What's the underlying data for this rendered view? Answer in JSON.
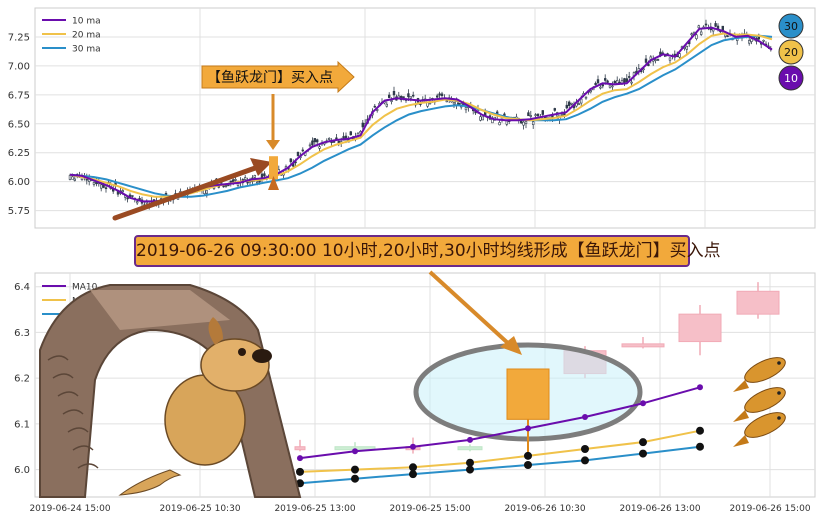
{
  "chart_data": [
    {
      "type": "candlestick",
      "series": [
        {
          "name": "10 ma",
          "color": "#6a0dad"
        },
        {
          "name": "20 ma",
          "color": "#f0c24a"
        },
        {
          "name": "30 ma",
          "color": "#2a8fc9"
        }
      ],
      "y_ticks": [
        "5.75",
        "6.00",
        "6.25",
        "6.50",
        "6.75",
        "7.00",
        "7.25"
      ],
      "ylim": [
        5.6,
        7.5
      ],
      "ma10": [
        6.06,
        6.05,
        6.01,
        5.97,
        5.92,
        5.86,
        5.83,
        5.83,
        5.84,
        5.88,
        5.92,
        5.95,
        5.97,
        5.98,
        5.99,
        6.02,
        6.03,
        6.06,
        6.12,
        6.22,
        6.3,
        6.34,
        6.36,
        6.37,
        6.4,
        6.6,
        6.7,
        6.72,
        6.71,
        6.7,
        6.71,
        6.72,
        6.71,
        6.65,
        6.58,
        6.54,
        6.53,
        6.53,
        6.54,
        6.56,
        6.58,
        6.6,
        6.7,
        6.8,
        6.85,
        6.84,
        6.85,
        6.95,
        7.05,
        7.1,
        7.08,
        7.2,
        7.32,
        7.33,
        7.3,
        7.25,
        7.26,
        7.21,
        7.14
      ],
      "ma20": [
        6.06,
        6.04,
        6.02,
        5.99,
        5.96,
        5.92,
        5.89,
        5.87,
        5.87,
        5.88,
        5.9,
        5.93,
        5.96,
        5.98,
        6.0,
        6.01,
        6.02,
        6.05,
        6.09,
        6.15,
        6.22,
        6.28,
        6.32,
        6.35,
        6.38,
        6.49,
        6.57,
        6.63,
        6.66,
        6.68,
        6.69,
        6.71,
        6.7,
        6.67,
        6.62,
        6.58,
        6.55,
        6.54,
        6.53,
        6.54,
        6.55,
        6.57,
        6.63,
        6.7,
        6.76,
        6.79,
        6.8,
        6.86,
        6.93,
        6.99,
        7.03,
        7.1,
        7.19,
        7.26,
        7.28,
        7.27,
        7.27,
        7.26,
        7.23
      ],
      "ma30": [
        6.06,
        6.05,
        6.04,
        6.02,
        5.99,
        5.96,
        5.93,
        5.9,
        5.88,
        5.87,
        5.87,
        5.88,
        5.9,
        5.92,
        5.95,
        5.97,
        5.99,
        6.01,
        6.03,
        6.07,
        6.12,
        6.18,
        6.23,
        6.28,
        6.32,
        6.4,
        6.47,
        6.53,
        6.58,
        6.61,
        6.63,
        6.65,
        6.66,
        6.65,
        6.62,
        6.59,
        6.56,
        6.54,
        6.53,
        6.53,
        6.53,
        6.54,
        6.58,
        6.63,
        6.69,
        6.73,
        6.76,
        6.8,
        6.86,
        6.92,
        6.97,
        7.04,
        7.11,
        7.18,
        7.22,
        7.24,
        7.25,
        7.26,
        7.25
      ],
      "badges": [
        "30",
        "20",
        "10"
      ],
      "annotation": "【鱼跃龙门】买入点"
    },
    {
      "type": "candlestick",
      "series": [
        {
          "name": "MA10",
          "color": "#6a0dad"
        },
        {
          "name": "MA20",
          "color": "#f0c24a"
        },
        {
          "name": "MA30",
          "color": "#2a8fc9"
        }
      ],
      "x_ticks": [
        "2019-06-24 15:00",
        "2019-06-25 10:30",
        "2019-06-25 13:00",
        "2019-06-25 15:00",
        "2019-06-26 10:30",
        "2019-06-26 13:00",
        "2019-06-26 15:00"
      ],
      "y_ticks": [
        "6.0",
        "6.1",
        "6.2",
        "6.3",
        "6.4"
      ],
      "ylim": [
        5.94,
        6.43
      ],
      "ma10": [
        6.025,
        6.04,
        6.05,
        6.065,
        6.09,
        6.115,
        6.145,
        6.18
      ],
      "ma20": [
        5.995,
        6.0,
        6.005,
        6.015,
        6.03,
        6.045,
        6.06,
        6.085
      ],
      "ma30": [
        5.97,
        5.98,
        5.99,
        6.0,
        6.01,
        6.02,
        6.035,
        6.05
      ],
      "candles": [
        {
          "open": 6.05,
          "close": 6.05,
          "high": 6.065,
          "low": 6.04,
          "up": false
        },
        {
          "open": 6.05,
          "close": 6.045,
          "high": 6.06,
          "low": 6.04,
          "up": true
        },
        {
          "open": 6.05,
          "close": 6.05,
          "high": 6.07,
          "low": 6.035,
          "up": false
        },
        {
          "open": 6.05,
          "close": 6.045,
          "high": 6.055,
          "low": 6.04,
          "up": true
        },
        {
          "open": 6.11,
          "close": 6.22,
          "high": 6.22,
          "low": 6.03,
          "up": false
        },
        {
          "open": 6.21,
          "close": 6.26,
          "high": 6.27,
          "low": 6.2,
          "up": false
        },
        {
          "open": 6.27,
          "close": 6.275,
          "high": 6.29,
          "low": 6.265,
          "up": false
        },
        {
          "open": 6.28,
          "close": 6.34,
          "high": 6.36,
          "low": 6.25,
          "up": false
        },
        {
          "open": 6.34,
          "close": 6.39,
          "high": 6.41,
          "low": 6.33,
          "up": false
        }
      ],
      "annotation": "2019-06-26 09:30:00 10小时,20小时,30小时均线形成【鱼跃龙门】买入点"
    }
  ]
}
